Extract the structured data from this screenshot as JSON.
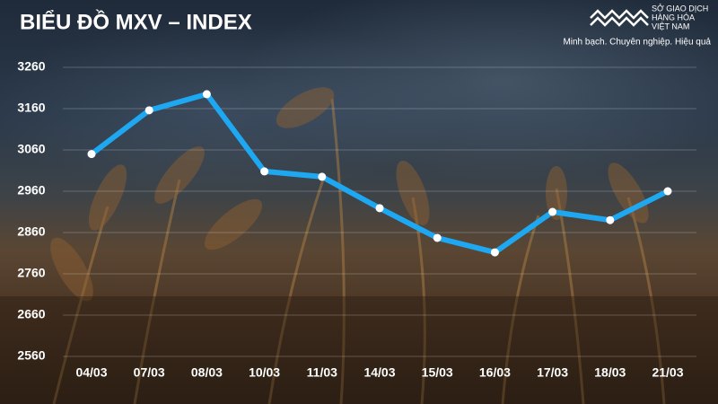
{
  "chart_data": {
    "type": "line",
    "title": "BIỂU ĐỒ MXV – INDEX",
    "logo_lines": [
      "SỞ GIAO DỊCH",
      "HÀNG HÓA",
      "VIỆT NAM"
    ],
    "tagline": "Minh bạch. Chuyên nghiệp. Hiệu quả",
    "categories": [
      "04/03",
      "07/03",
      "08/03",
      "10/03",
      "11/03",
      "14/03",
      "15/03",
      "16/03",
      "17/03",
      "18/03",
      "21/03"
    ],
    "series": [
      {
        "name": "MXV-Index",
        "color": "#1ea8f2",
        "values": [
          3050,
          3156,
          3195,
          3008,
          2995,
          2919,
          2847,
          2812,
          2910,
          2890,
          2960
        ]
      }
    ],
    "ylim": [
      2560,
      3260
    ],
    "yticks": [
      2560,
      2660,
      2760,
      2860,
      2960,
      3060,
      3160,
      3260
    ],
    "grid": true
  }
}
